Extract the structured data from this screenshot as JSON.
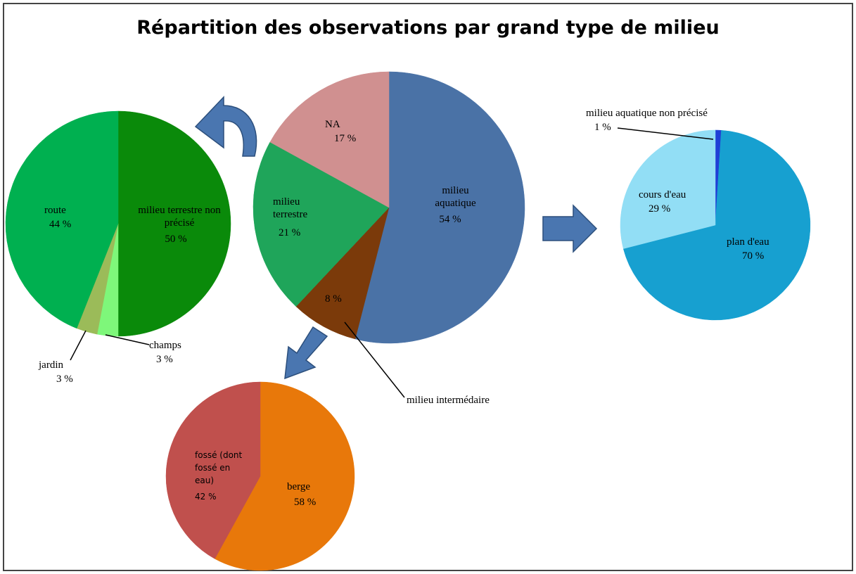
{
  "chart_data": [
    {
      "type": "pie",
      "title": "Répartition des observations par grand type de milieu",
      "categories": [
        "milieu aquatique",
        "milieu intermédaire",
        "milieu terrestre",
        "NA"
      ],
      "values": [
        54,
        8,
        21,
        17
      ],
      "value_labels": [
        "54 %",
        "8 %",
        "21 %",
        "17 %"
      ],
      "colors": [
        "#4a72a6",
        "#7b3a0a",
        "#1fa55a",
        "#d09090"
      ]
    },
    {
      "type": "pie",
      "categories": [
        "milieu terrestre non précisé",
        "champs",
        "jardin",
        "route"
      ],
      "values": [
        50,
        3,
        3,
        44
      ],
      "value_labels": [
        "50 %",
        "3 %",
        "3 %",
        "44 %"
      ],
      "colors": [
        "#0a8a0a",
        "#7ef77a",
        "#9bbb59",
        "#00b050"
      ]
    },
    {
      "type": "pie",
      "categories": [
        "berge",
        "fossé (dont fossé en eau)"
      ],
      "values": [
        58,
        42
      ],
      "value_labels": [
        "58 %",
        "42 %"
      ],
      "colors": [
        "#e8780a",
        "#c0504d"
      ]
    },
    {
      "type": "pie",
      "categories": [
        "milieu aquatique non précisé",
        "plan d'eau",
        "cours d'eau"
      ],
      "values": [
        1,
        70,
        29
      ],
      "value_labels": [
        "1 %",
        "70 %",
        "29 %"
      ],
      "colors": [
        "#1f3fd6",
        "#17a0d0",
        "#92def5"
      ]
    }
  ]
}
